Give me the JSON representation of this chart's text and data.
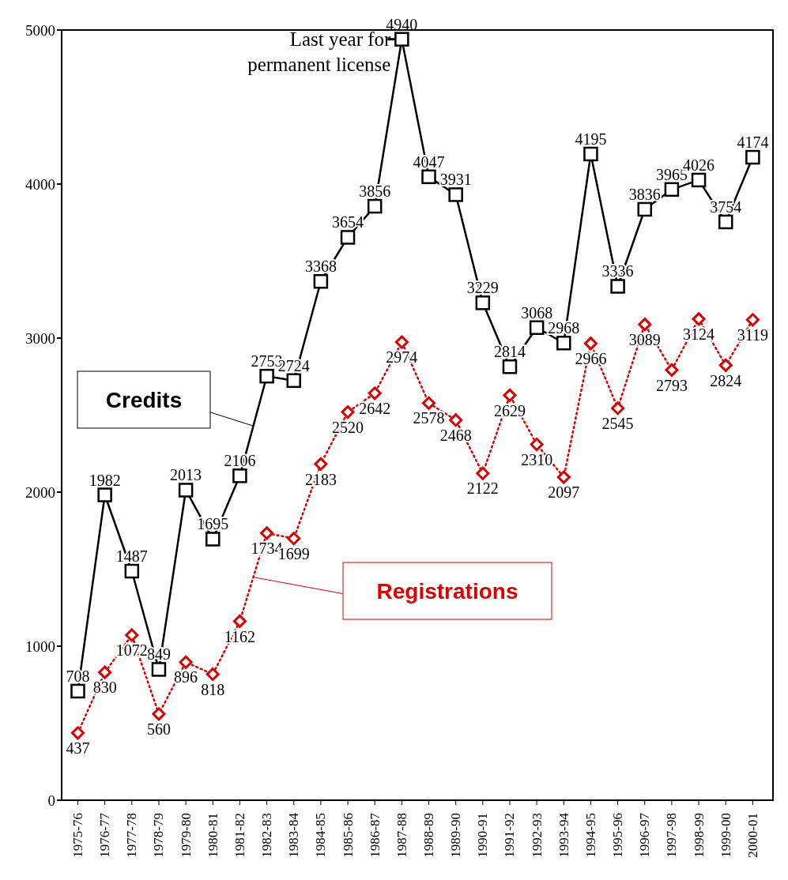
{
  "chart_data": {
    "type": "line",
    "categories": [
      "1975-76",
      "1976-77",
      "1977-78",
      "1978-79",
      "1979-80",
      "1980-81",
      "1981-82",
      "1982-83",
      "1983-84",
      "1984-85",
      "1985-86",
      "1986-87",
      "1987-88",
      "1988-89",
      "1989-90",
      "1990-91",
      "1991-92",
      "1992-93",
      "1993-94",
      "1994-95",
      "1995-96",
      "1996-97",
      "1997-98",
      "1998-99",
      "1999-00",
      "2000-01"
    ],
    "series": [
      {
        "name": "Credits",
        "color": "#000000",
        "marker": "square",
        "line_style": "solid",
        "values": [
          708,
          1982,
          1487,
          849,
          2013,
          1695,
          2106,
          2753,
          2724,
          3368,
          3654,
          3856,
          4940,
          4047,
          3931,
          3229,
          2814,
          3068,
          2968,
          4195,
          3336,
          3836,
          3965,
          4026,
          3754,
          4174
        ]
      },
      {
        "name": "Registrations",
        "color": "#dd0000",
        "marker": "diamond",
        "line_style": "dotted",
        "values": [
          437,
          830,
          1072,
          560,
          896,
          818,
          1162,
          1734,
          1699,
          2183,
          2520,
          2642,
          2974,
          2578,
          2468,
          2122,
          2629,
          2310,
          2097,
          2966,
          2545,
          3089,
          2793,
          3124,
          2824,
          3119
        ]
      }
    ],
    "ylim": [
      0,
      5000
    ],
    "yticks": [
      0,
      1000,
      2000,
      3000,
      4000,
      5000
    ],
    "grid": false,
    "data_labels": true,
    "annotations": [
      {
        "text": "Last year for permanent license",
        "x": "1987-88",
        "y": 4940
      }
    ]
  }
}
